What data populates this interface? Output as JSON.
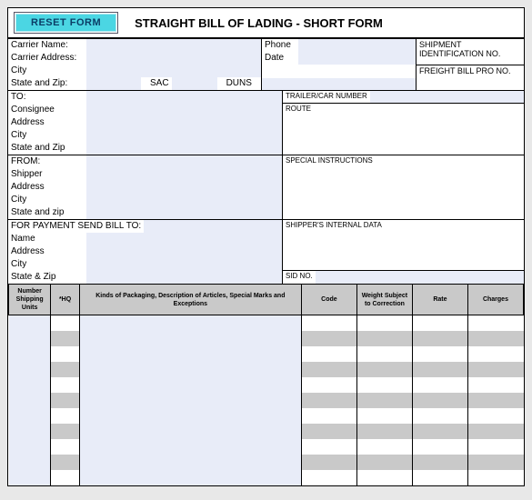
{
  "title": "STRAIGHT BILL OF LADING - SHORT FORM",
  "reset_label": "RESET FORM",
  "carrier": {
    "name_label": "Carrier Name:",
    "address_label": "Carrier Address:",
    "city_label": "City",
    "statezip_label": "State and Zip:",
    "sac_label": "SAC",
    "duns_label": "DUNS"
  },
  "contact": {
    "phone_label": "Phone",
    "date_label": "Date"
  },
  "shipment_id_label": "SHIPMENT IDENTIFICATION NO.",
  "freight_pro_label": "FREIGHT BILL PRO NO.",
  "trailer_label": "TRAILER/CAR NUMBER",
  "route_label": "ROUTE",
  "special_label": "SPECIAL INSTRUCTIONS",
  "shipper_internal_label": "SHIPPER'S INTERNAL DATA",
  "sid_label": "SID NO.",
  "to": {
    "header": "TO:",
    "consignee": "Consignee",
    "address": "Address",
    "city": "City",
    "statezip": "State and Zip"
  },
  "from": {
    "header": "FROM:",
    "shipper": "Shipper",
    "address": "Address",
    "city": "City",
    "statezip": "State and zip"
  },
  "pay": {
    "header": "FOR PAYMENT SEND BILL TO:",
    "name": "Name",
    "address": "Address",
    "city": "City",
    "statezip": "State & Zip"
  },
  "items": {
    "headers": {
      "nsu": "Number Shipping Units",
      "hq": "*HQ",
      "desc": "Kinds of Packaging, Description of Articles, Special Marks and Exceptions",
      "code": "Code",
      "wsc": "Weight Subject to Correction",
      "rate": "Rate",
      "charges": "Charges"
    },
    "row_count": 11,
    "colors": {
      "header_bg": "#c9c9c9",
      "lavender": "#e8ecf8",
      "stripe": "#c9c9c9"
    }
  }
}
